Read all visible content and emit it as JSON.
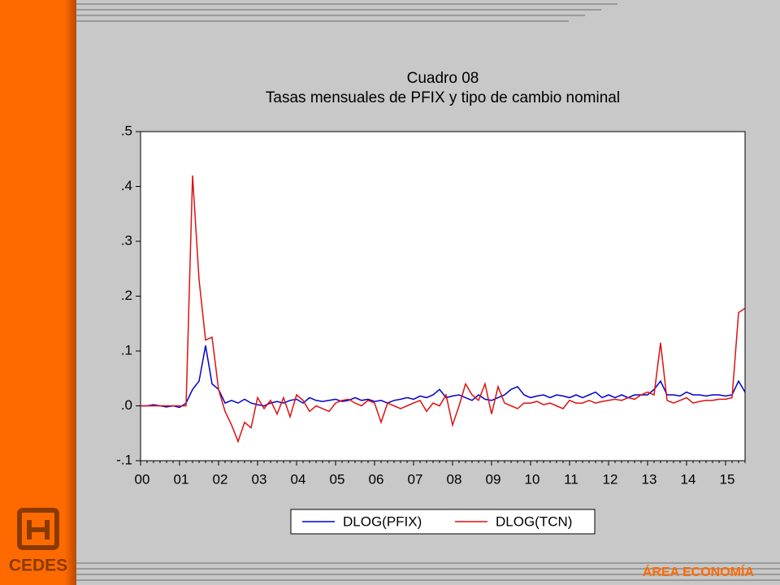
{
  "slide": {
    "logo": "CEDES",
    "footer": "ÁREA ECONOMÍA"
  },
  "chart_data": {
    "type": "line",
    "title": "Cuadro 08",
    "subtitle": "Tasas mensuales de PFIX y tipo de cambio nominal",
    "categories": [
      "00",
      null,
      null,
      null,
      null,
      null,
      "01",
      null,
      null,
      null,
      null,
      null,
      "02",
      null,
      null,
      null,
      null,
      null,
      "03",
      null,
      null,
      null,
      null,
      null,
      "04",
      null,
      null,
      null,
      null,
      null,
      "05",
      null,
      null,
      null,
      null,
      null,
      "06",
      null,
      null,
      null,
      null,
      null,
      "07",
      null,
      null,
      null,
      null,
      null,
      "08",
      null,
      null,
      null,
      null,
      null,
      "09",
      null,
      null,
      null,
      null,
      null,
      "10",
      null,
      null,
      null,
      null,
      null,
      "11",
      null,
      null,
      null,
      null,
      null,
      "12",
      null,
      null,
      null,
      null,
      null,
      "13",
      null,
      null,
      null,
      null,
      null,
      "14",
      null,
      null,
      null,
      null,
      null,
      "15",
      null,
      null,
      null
    ],
    "series": [
      {
        "name": "DLOG(PFIX)",
        "color": "#0000cc",
        "values": [
          0,
          0,
          0.002,
          0,
          -0.002,
          0,
          -0.003,
          0.005,
          0.03,
          0.045,
          0.11,
          0.04,
          0.03,
          0.005,
          0.01,
          0.005,
          0.012,
          0.005,
          0.002,
          0,
          0.005,
          0.008,
          0.005,
          0.01,
          0.012,
          0.005,
          0.015,
          0.01,
          0.008,
          0.01,
          0.012,
          0.008,
          0.01,
          0.015,
          0.01,
          0.012,
          0.008,
          0.01,
          0.005,
          0.01,
          0.012,
          0.015,
          0.012,
          0.018,
          0.015,
          0.02,
          0.03,
          0.015,
          0.018,
          0.02,
          0.015,
          0.01,
          0.02,
          0.012,
          0.01,
          0.015,
          0.02,
          0.03,
          0.035,
          0.02,
          0.015,
          0.018,
          0.02,
          0.015,
          0.02,
          0.018,
          0.015,
          0.02,
          0.015,
          0.02,
          0.025,
          0.015,
          0.02,
          0.015,
          0.02,
          0.015,
          0.02,
          0.02,
          0.02,
          0.03,
          0.045,
          0.02,
          0.02,
          0.018,
          0.025,
          0.02,
          0.02,
          0.018,
          0.02,
          0.02,
          0.018,
          0.02,
          0.045,
          0.025
        ]
      },
      {
        "name": "DLOG(TCN)",
        "color": "#dd1111",
        "values": [
          0,
          0,
          0,
          0,
          0,
          0,
          0,
          0,
          0.42,
          0.23,
          0.12,
          0.125,
          0.03,
          -0.01,
          -0.035,
          -0.065,
          -0.03,
          -0.04,
          0.015,
          -0.005,
          0.01,
          -0.015,
          0.015,
          -0.02,
          0.02,
          0.01,
          -0.01,
          0,
          -0.005,
          -0.01,
          0.005,
          0.01,
          0.012,
          0.005,
          0,
          0.01,
          0.005,
          -0.03,
          0.005,
          0,
          -0.005,
          0,
          0.005,
          0.01,
          -0.01,
          0.005,
          0,
          0.02,
          -0.035,
          0,
          0.04,
          0.02,
          0.01,
          0.04,
          -0.015,
          0.035,
          0.005,
          0,
          -0.005,
          0.005,
          0.005,
          0.008,
          0.002,
          0.005,
          0,
          -0.005,
          0.01,
          0.005,
          0.005,
          0.01,
          0.005,
          0.008,
          0.01,
          0.012,
          0.01,
          0.015,
          0.012,
          0.02,
          0.025,
          0.02,
          0.115,
          0.01,
          0.005,
          0.01,
          0.015,
          0.005,
          0.008,
          0.01,
          0.01,
          0.012,
          0.012,
          0.015,
          0.17,
          0.178
        ]
      }
    ],
    "ylim": [
      -0.1,
      0.5
    ],
    "yticks": [
      {
        "value": -0.1,
        "label": "-.1"
      },
      {
        "value": 0,
        "label": ".0"
      },
      {
        "value": 0.1,
        "label": ".1"
      },
      {
        "value": 0.2,
        "label": ".2"
      },
      {
        "value": 0.3,
        "label": ".3"
      },
      {
        "value": 0.4,
        "label": ".4"
      },
      {
        "value": 0.5,
        "label": ".5"
      }
    ],
    "grid": false
  }
}
